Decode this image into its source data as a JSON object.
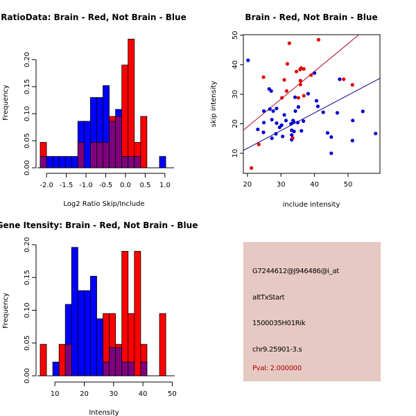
{
  "colors": {
    "brain": "#ff0000",
    "not_brain": "#0000ff",
    "overlap": "#7f007f",
    "brain_line": "#b00020",
    "not_brain_line": "#00008b",
    "brain_point": "#e00000",
    "not_brain_point": "#0000d0",
    "info_bg": "#e6c9c2",
    "pval_text": "#b00000"
  },
  "chart_data": [
    {
      "id": "ratio-histogram",
      "type": "bar",
      "title": "RatioData: Brain - Red, Not Brain - Blue",
      "xlabel": "Log2 Ratio Skip/Include",
      "ylabel": "Frequency",
      "xlim": [
        -2.16,
        1.16
      ],
      "ylim": [
        0,
        0.2
      ],
      "xticks": [
        -2.0,
        -1.5,
        -1.0,
        -0.5,
        0.0,
        0.5,
        1.0
      ],
      "xtick_labels": [
        "-2.0",
        "-1.5",
        "-1.0",
        "-0.5",
        "0.0",
        "0.5",
        "1.0"
      ],
      "yticks": [
        0,
        0.05,
        0.1,
        0.15,
        0.2
      ],
      "ytick_labels": [
        "0.00",
        "0.05",
        "0.10",
        "0.15",
        "0.20"
      ],
      "bin_start": -2.16,
      "bin_width": 0.159,
      "series": [
        {
          "name": "Brain",
          "color": "red",
          "values": [
            0.047,
            0,
            0,
            0,
            0,
            0,
            0.047,
            0,
            0.047,
            0.047,
            0.047,
            0.095,
            0.095,
            0.19,
            0.238,
            0.047,
            0.095,
            0,
            0,
            0
          ]
        },
        {
          "name": "Not Brain",
          "color": "blue",
          "values": [
            0.021,
            0.021,
            0.021,
            0.021,
            0.021,
            0.021,
            0.086,
            0.086,
            0.13,
            0.13,
            0.152,
            0.086,
            0.108,
            0.021,
            0.021,
            0.021,
            0,
            0,
            0,
            0.021
          ]
        }
      ]
    },
    {
      "id": "intensity-scatter",
      "type": "scatter",
      "title": "Brain - Red, Not Brain - Blue",
      "xlabel": "include intensity",
      "ylabel": "skip intensity",
      "xlim": [
        18.8,
        59.5
      ],
      "ylim": [
        3.2,
        50.2
      ],
      "xticks": [
        20,
        30,
        40,
        50
      ],
      "xtick_labels": [
        "20",
        "30",
        "40",
        "50"
      ],
      "yticks": [
        10,
        20,
        30,
        40,
        50
      ],
      "ytick_labels": [
        "10",
        "20",
        "30",
        "40",
        "50"
      ],
      "series": [
        {
          "name": "Brain",
          "color": "red",
          "fit_line": {
            "intercept": 0.15,
            "slope": 0.94
          },
          "points": [
            [
              41.2,
              48.5
            ],
            [
              32.5,
              47.3
            ],
            [
              31.9,
              40.3
            ],
            [
              24.8,
              35.8
            ],
            [
              36.0,
              38.9
            ],
            [
              36.8,
              38.6
            ],
            [
              35.7,
              38.4
            ],
            [
              34.6,
              37.7
            ],
            [
              31.0,
              34.9
            ],
            [
              35.8,
              34.6
            ],
            [
              39.0,
              36.5
            ],
            [
              48.7,
              35.1
            ],
            [
              51.3,
              33.2
            ],
            [
              35.8,
              33.3
            ],
            [
              31.7,
              31.1
            ],
            [
              36.8,
              29.5
            ],
            [
              30.3,
              28.8
            ],
            [
              35.2,
              28.8
            ],
            [
              23.4,
              13.0
            ],
            [
              21.2,
              5.0
            ],
            [
              33.5,
              15.2
            ]
          ]
        },
        {
          "name": "Not Brain",
          "color": "blue",
          "fit_line": {
            "intercept": -0.3,
            "slope": 0.6
          },
          "points": [
            [
              20.2,
              41.5
            ],
            [
              40.0,
              37.2
            ],
            [
              47.5,
              35.1
            ],
            [
              26.5,
              31.8
            ],
            [
              27.1,
              31.1
            ],
            [
              38.1,
              30.2
            ],
            [
              34.2,
              29.0
            ],
            [
              40.6,
              27.8
            ],
            [
              41.0,
              25.9
            ],
            [
              35.2,
              25.7
            ],
            [
              26.7,
              25.0
            ],
            [
              28.7,
              25.2
            ],
            [
              24.9,
              24.3
            ],
            [
              27.7,
              24.3
            ],
            [
              34.3,
              24.3
            ],
            [
              42.6,
              23.9
            ],
            [
              46.8,
              23.7
            ],
            [
              54.4,
              24.2
            ],
            [
              31.0,
              23.0
            ],
            [
              27.3,
              21.4
            ],
            [
              31.5,
              21.1
            ],
            [
              33.6,
              21.1
            ],
            [
              33.8,
              20.7
            ],
            [
              36.7,
              20.9
            ],
            [
              51.4,
              21.1
            ],
            [
              24.9,
              20.4
            ],
            [
              28.7,
              20.2
            ],
            [
              33.0,
              20.0
            ],
            [
              35.0,
              20.4
            ],
            [
              30.2,
              19.5
            ],
            [
              29.6,
              18.8
            ],
            [
              23.1,
              18.1
            ],
            [
              33.2,
              17.8
            ],
            [
              33.9,
              17.4
            ],
            [
              36.1,
              17.6
            ],
            [
              24.8,
              17.1
            ],
            [
              28.5,
              16.6
            ],
            [
              43.9,
              16.9
            ],
            [
              58.2,
              16.7
            ],
            [
              33.2,
              16.2
            ],
            [
              30.5,
              15.7
            ],
            [
              45.0,
              15.5
            ],
            [
              27.3,
              15.1
            ],
            [
              33.2,
              14.6
            ],
            [
              51.3,
              14.3
            ],
            [
              45.0,
              10.0
            ]
          ]
        }
      ]
    },
    {
      "id": "gene-intensity-histogram",
      "type": "bar",
      "title": "Gene Itensity: Brain - Red, Not Brain - Blue",
      "xlabel": "Intensity",
      "ylabel": "Frequency",
      "xlim": [
        5.0,
        49.9
      ],
      "ylim": [
        0,
        0.2
      ],
      "xticks": [
        10,
        20,
        30,
        40,
        50
      ],
      "xtick_labels": [
        "10",
        "20",
        "30",
        "40",
        "50"
      ],
      "yticks": [
        0,
        0.05,
        0.1,
        0.15,
        0.2
      ],
      "ytick_labels": [
        "0.00",
        "0.05",
        "0.10",
        "0.15",
        "0.20"
      ],
      "bin_start": 5.0,
      "bin_width": 2.14,
      "series": [
        {
          "name": "Brain",
          "color": "red",
          "values": [
            0.048,
            0,
            0,
            0.048,
            0.048,
            0,
            0,
            0,
            0,
            0,
            0.095,
            0.095,
            0.048,
            0.19,
            0.095,
            0.19,
            0.048,
            0,
            0,
            0.095
          ]
        },
        {
          "name": "Not Brain",
          "color": "blue",
          "values": [
            0,
            0,
            0.021,
            0,
            0.109,
            0.196,
            0.13,
            0.13,
            0.152,
            0.087,
            0.021,
            0.043,
            0.043,
            0.021,
            0.021,
            0,
            0.021,
            0,
            0,
            0
          ]
        }
      ]
    }
  ],
  "info_panel": {
    "probe_id": "G7244612@J946486@i_at",
    "event_type": "altTxStart",
    "gene_name": "1500035H01Rik",
    "location": "chr9.25901-3.s",
    "pval": "Pval: 2.000000"
  }
}
